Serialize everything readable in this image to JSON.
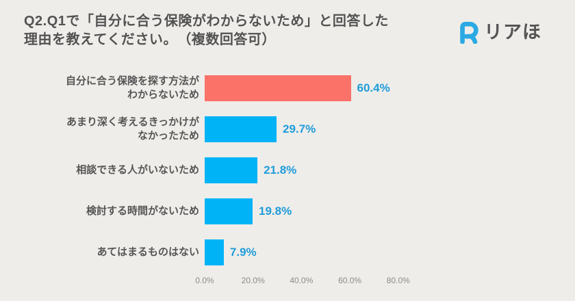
{
  "header": {
    "title_lines": [
      "Q2.Q1で「自分に合う保険がわからないため」と回答した",
      "理由を教えてください。　（複数回答可）"
    ],
    "logo": {
      "mark": "R",
      "text": "リアほ"
    }
  },
  "chart_data": {
    "type": "bar",
    "orientation": "horizontal",
    "title": "Q2.Q1で「自分に合う保険がわからないため」と回答した理由を教えてください。（複数回答可）",
    "categories": [
      "自分に合う保険を探す方法が\nわからないため",
      "あまり深く考えるきっかけが\nなかったため",
      "相談できる人がいないため",
      "検討する時間がないため",
      "あてはまるものはない"
    ],
    "values": [
      60.4,
      29.7,
      21.8,
      19.8,
      7.9
    ],
    "value_labels": [
      "60.4%",
      "29.7%",
      "21.8%",
      "19.8%",
      "7.9%"
    ],
    "bar_colors": [
      "#FA7268",
      "#00B3F7",
      "#00B3F7",
      "#00B3F7",
      "#00B3F7"
    ],
    "x_ticks": [
      {
        "label": "0.0%",
        "value": 0
      },
      {
        "label": "20.0%",
        "value": 20
      },
      {
        "label": "40.0%",
        "value": 40
      },
      {
        "label": "60.0%",
        "value": 60
      },
      {
        "label": "80.0%",
        "value": 80
      }
    ],
    "xlim": [
      0,
      80
    ],
    "grid": false,
    "legend": false
  },
  "colors": {
    "background": "#EFEDEA",
    "title_text": "#525252",
    "category_text": "#555555",
    "value_text": "#1F9CD9",
    "axis_text": "#8B8B8B",
    "logo_mark": "#2BA9E3",
    "logo_text": "#545454",
    "bar_highlight": "#FA7268",
    "bar_default": "#00B3F7"
  }
}
